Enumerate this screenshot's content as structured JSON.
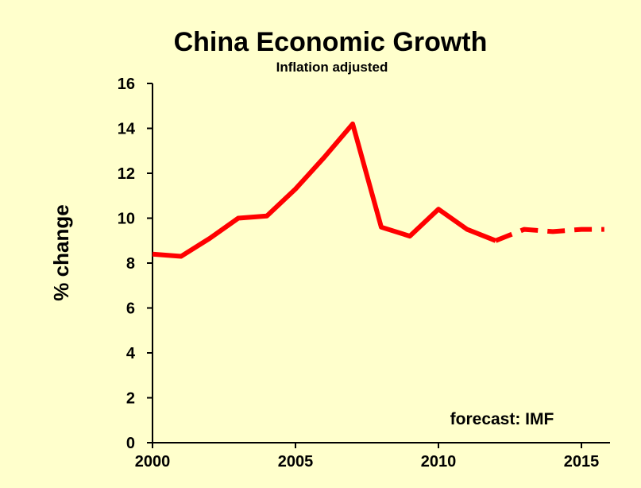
{
  "chart_data": {
    "type": "line",
    "title": "China Economic Growth",
    "subtitle": "Inflation adjusted",
    "ylabel": "% change",
    "xlabel": "",
    "xlim": [
      2000,
      2016
    ],
    "ylim": [
      0,
      16
    ],
    "yticks": [
      0,
      2,
      4,
      6,
      8,
      10,
      12,
      14,
      16
    ],
    "xticks": [
      2000,
      2005,
      2010,
      2015
    ],
    "grid": false,
    "annotation": "forecast:  IMF",
    "line_color": "#ff0000",
    "series": [
      {
        "style": "solid",
        "x": [
          2000,
          2001,
          2002,
          2003,
          2004,
          2005,
          2006,
          2007,
          2008,
          2009,
          2010,
          2011,
          2012
        ],
        "y": [
          8.4,
          8.3,
          9.1,
          10.0,
          10.1,
          11.3,
          12.7,
          14.2,
          9.6,
          9.2,
          10.4,
          9.5,
          9.0
        ]
      },
      {
        "style": "dashed",
        "x": [
          2012,
          2013,
          2014,
          2015,
          2015.8
        ],
        "y": [
          9.0,
          9.5,
          9.4,
          9.5,
          9.5
        ]
      }
    ]
  }
}
